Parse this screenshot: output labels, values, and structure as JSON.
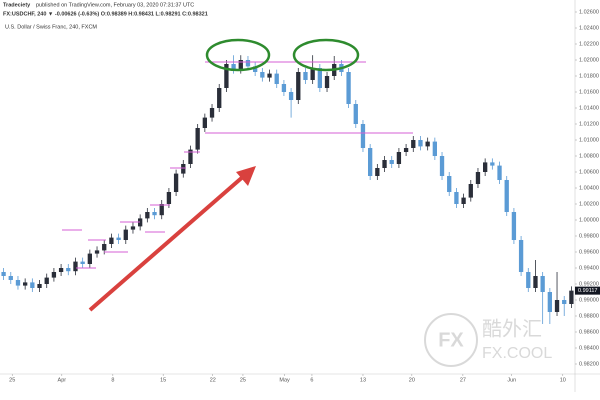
{
  "header": {
    "publisher": "Tradeciety",
    "published": "published on TradingView.com, February 03, 2020 07:31:37 UTC",
    "symbol_line": "FX:USDCHF, 240 ▼ -0.00626 (-0.63%) O:0.98389 H:0.98431 L:0.98291 C:0.98321"
  },
  "watermark": {
    "logo": "FX",
    "name": "酷外汇",
    "site": "FX.COOL"
  },
  "chart_data": {
    "type": "candlestick",
    "title": "U.S. Dollar / Swiss Franc, 240, FXCM",
    "up_color": "#2a2e39",
    "down_color": "#5b9bd5",
    "xlim": [
      -0.5,
      79.5
    ],
    "xticks": [
      {
        "value": 1.2,
        "label": "25"
      },
      {
        "value": 8.1,
        "label": "Apr"
      },
      {
        "value": 15.2,
        "label": "8"
      },
      {
        "value": 22.2,
        "label": "15"
      },
      {
        "value": 29.1,
        "label": "22"
      },
      {
        "value": 33.3,
        "label": "25"
      },
      {
        "value": 39.1,
        "label": "May"
      },
      {
        "value": 42.9,
        "label": "6"
      },
      {
        "value": 50,
        "label": "13"
      },
      {
        "value": 56.8,
        "label": "20"
      },
      {
        "value": 63.9,
        "label": "27"
      },
      {
        "value": 70.7,
        "label": "Jun"
      },
      {
        "value": 77.8,
        "label": "10"
      }
    ],
    "ylim": [
      0.981,
      1.027
    ],
    "yticks": [
      {
        "value": 1.026,
        "label": "1.02600"
      },
      {
        "value": 1.024,
        "label": "1.02400"
      },
      {
        "value": 1.022,
        "label": "1.02200"
      },
      {
        "value": 1.02,
        "label": "1.02000"
      },
      {
        "value": 1.018,
        "label": "1.01800"
      },
      {
        "value": 1.016,
        "label": "1.01600"
      },
      {
        "value": 1.014,
        "label": "1.01400"
      },
      {
        "value": 1.012,
        "label": "1.01200"
      },
      {
        "value": 1.01,
        "label": "1.01000"
      },
      {
        "value": 1.008,
        "label": "1.00800"
      },
      {
        "value": 1.006,
        "label": "1.00600"
      },
      {
        "value": 1.004,
        "label": "1.00400"
      },
      {
        "value": 1.002,
        "label": "1.00200"
      },
      {
        "value": 1.0,
        "label": "1.00000"
      },
      {
        "value": 0.998,
        "label": "0.99800"
      },
      {
        "value": 0.996,
        "label": "0.99600"
      },
      {
        "value": 0.994,
        "label": "0.99400"
      },
      {
        "value": 0.992,
        "label": "0.99200"
      },
      {
        "value": 0.99,
        "label": "0.99000"
      },
      {
        "value": 0.988,
        "label": "0.98800"
      },
      {
        "value": 0.986,
        "label": "0.98600"
      },
      {
        "value": 0.984,
        "label": "0.98400"
      },
      {
        "value": 0.982,
        "label": "0.98200"
      }
    ],
    "open": [
      0.9935,
      0.993,
      0.9925,
      0.9918,
      0.9922,
      0.9915,
      0.992,
      0.9928,
      0.9935,
      0.994,
      0.9936,
      0.9948,
      0.9945,
      0.9958,
      0.9962,
      0.997,
      0.9978,
      0.9975,
      0.9988,
      0.9992,
      1.0002,
      1.001,
      1.0006,
      1.002,
      1.0035,
      1.0058,
      1.007,
      1.0088,
      1.0115,
      1.0128,
      1.014,
      1.0165,
      1.0195,
      1.0188,
      1.02,
      1.0192,
      1.0185,
      1.0178,
      1.0183,
      1.017,
      1.016,
      1.015,
      1.0185,
      1.0175,
      1.019,
      1.0165,
      1.018,
      1.0195,
      1.0185,
      1.0145,
      1.012,
      1.009,
      1.0055,
      1.0065,
      1.0075,
      1.007,
      1.0085,
      1.009,
      1.01,
      1.0092,
      1.0098,
      1.008,
      1.0055,
      1.0035,
      1.002,
      1.0028,
      1.0045,
      1.006,
      1.0072,
      1.0068,
      1.005,
      1.001,
      0.9975,
      0.9935,
      0.9915,
      0.993,
      0.991,
      0.9885,
      0.99,
      0.9895
    ],
    "high": [
      0.994,
      0.9935,
      0.993,
      0.9927,
      0.9927,
      0.9925,
      0.9933,
      0.994,
      0.9945,
      0.9945,
      0.9953,
      0.9953,
      0.9963,
      0.9967,
      0.9975,
      0.9983,
      0.9983,
      0.9993,
      0.9997,
      1.0007,
      1.0015,
      1.0015,
      1.0025,
      1.004,
      1.0063,
      1.0075,
      1.0093,
      1.012,
      1.0133,
      1.0145,
      1.017,
      1.02,
      1.0206,
      1.0206,
      1.0205,
      1.0197,
      1.019,
      1.0188,
      1.0188,
      1.0175,
      1.0165,
      1.019,
      1.019,
      1.0206,
      1.0195,
      1.0185,
      1.0205,
      1.02,
      1.019,
      1.015,
      1.0125,
      1.0095,
      1.007,
      1.008,
      1.008,
      1.009,
      1.0095,
      1.0105,
      1.0105,
      1.0103,
      1.0103,
      1.0085,
      1.006,
      1.004,
      1.0033,
      1.005,
      1.0065,
      1.0077,
      1.0077,
      1.0073,
      1.0055,
      1.0015,
      0.998,
      0.994,
      0.995,
      0.9935,
      0.9915,
      0.9935,
      0.9905,
      0.9917
    ],
    "low": [
      0.9925,
      0.992,
      0.9913,
      0.9913,
      0.991,
      0.991,
      0.9915,
      0.9923,
      0.993,
      0.9931,
      0.9931,
      0.994,
      0.994,
      0.9953,
      0.9957,
      0.9965,
      0.997,
      0.997,
      0.9983,
      0.9987,
      0.9997,
      1.0001,
      1.0001,
      1.0015,
      1.003,
      1.0053,
      1.0065,
      1.0083,
      1.011,
      1.0123,
      1.0135,
      1.016,
      1.0183,
      1.0183,
      1.0187,
      1.018,
      1.0173,
      1.0173,
      1.0165,
      1.0155,
      1.0128,
      1.0145,
      1.017,
      1.017,
      1.016,
      1.016,
      1.0175,
      1.018,
      1.014,
      1.0115,
      1.0085,
      1.005,
      1.005,
      1.006,
      1.0065,
      1.0065,
      1.008,
      1.0085,
      1.0087,
      1.0087,
      1.0075,
      1.005,
      1.003,
      1.0015,
      1.0015,
      1.0023,
      1.004,
      1.0055,
      1.0063,
      1.0045,
      1.0005,
      0.997,
      0.993,
      0.991,
      0.991,
      0.987,
      0.987,
      0.988,
      0.988,
      0.989
    ],
    "close": [
      0.993,
      0.9925,
      0.9918,
      0.9922,
      0.9915,
      0.992,
      0.9928,
      0.9935,
      0.994,
      0.9936,
      0.9948,
      0.9945,
      0.9958,
      0.9962,
      0.997,
      0.9978,
      0.9975,
      0.9988,
      0.9992,
      1.0002,
      1.001,
      1.0006,
      1.002,
      1.0035,
      1.0058,
      1.007,
      1.0088,
      1.0115,
      1.0128,
      1.014,
      1.0165,
      1.0195,
      1.0188,
      1.02,
      1.0192,
      1.0185,
      1.0178,
      1.0183,
      1.017,
      1.016,
      1.015,
      1.0185,
      1.0175,
      1.019,
      1.0165,
      1.018,
      1.0195,
      1.0185,
      1.0145,
      1.012,
      1.009,
      1.0055,
      1.0065,
      1.0075,
      1.007,
      1.0085,
      1.009,
      1.01,
      1.0092,
      1.0098,
      1.008,
      1.0055,
      1.0035,
      1.002,
      1.0028,
      1.0045,
      1.006,
      1.0072,
      1.0068,
      1.005,
      1.001,
      0.9975,
      0.9935,
      0.9915,
      0.993,
      0.991,
      0.9885,
      0.99,
      0.9895,
      0.99117
    ]
  }
}
